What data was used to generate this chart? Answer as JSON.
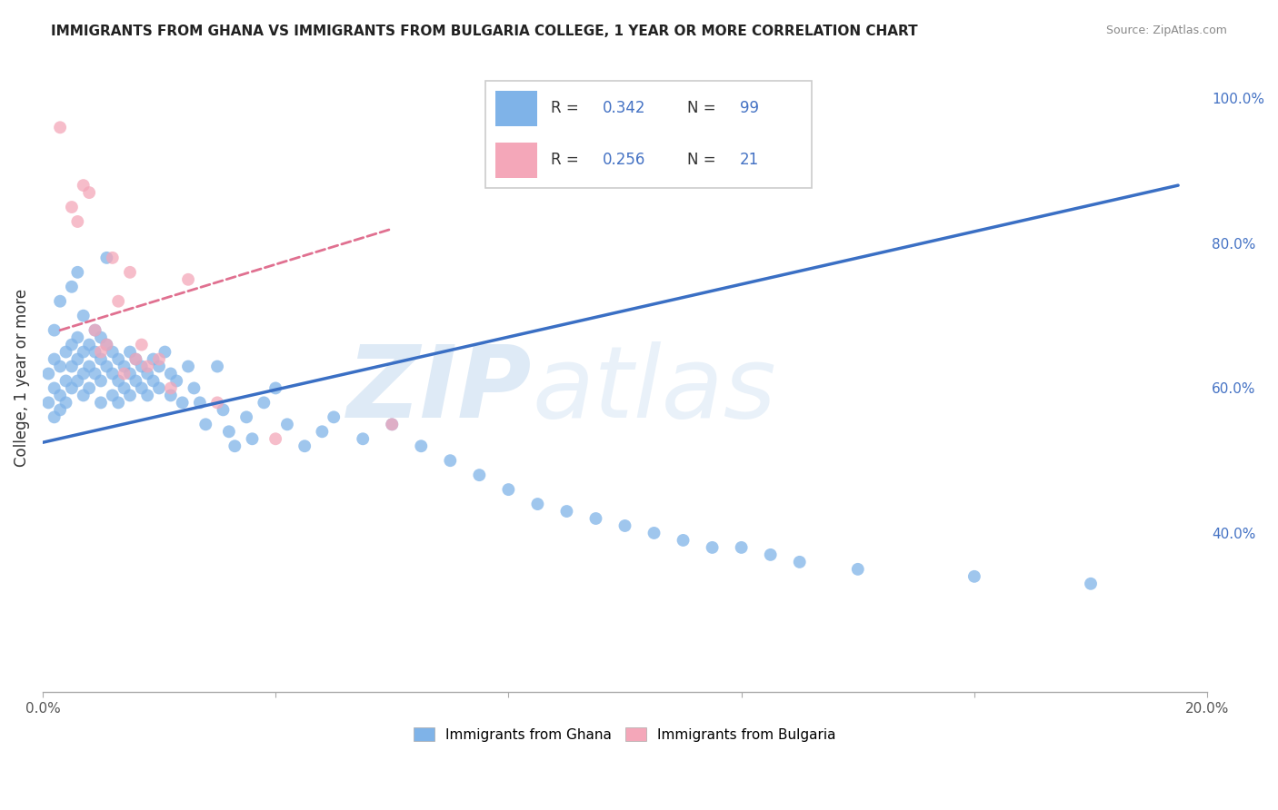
{
  "title": "IMMIGRANTS FROM GHANA VS IMMIGRANTS FROM BULGARIA COLLEGE, 1 YEAR OR MORE CORRELATION CHART",
  "source": "Source: ZipAtlas.com",
  "ylabel": "College, 1 year or more",
  "xlim": [
    0.0,
    0.2
  ],
  "ylim": [
    0.18,
    1.05
  ],
  "ghana_color": "#7FB3E8",
  "bulgaria_color": "#F4A7B9",
  "ghana_line_color": "#3A6FC4",
  "bulgaria_line_color": "#E07090",
  "ghana_R": 0.342,
  "ghana_N": 99,
  "bulgaria_R": 0.256,
  "bulgaria_N": 21,
  "ghana_scatter_x": [
    0.001,
    0.001,
    0.002,
    0.002,
    0.002,
    0.002,
    0.003,
    0.003,
    0.003,
    0.003,
    0.004,
    0.004,
    0.004,
    0.005,
    0.005,
    0.005,
    0.005,
    0.006,
    0.006,
    0.006,
    0.006,
    0.007,
    0.007,
    0.007,
    0.007,
    0.008,
    0.008,
    0.008,
    0.009,
    0.009,
    0.009,
    0.01,
    0.01,
    0.01,
    0.01,
    0.011,
    0.011,
    0.011,
    0.012,
    0.012,
    0.012,
    0.013,
    0.013,
    0.013,
    0.014,
    0.014,
    0.015,
    0.015,
    0.015,
    0.016,
    0.016,
    0.017,
    0.017,
    0.018,
    0.018,
    0.019,
    0.019,
    0.02,
    0.02,
    0.021,
    0.022,
    0.022,
    0.023,
    0.024,
    0.025,
    0.026,
    0.027,
    0.028,
    0.03,
    0.031,
    0.032,
    0.033,
    0.035,
    0.036,
    0.038,
    0.04,
    0.042,
    0.045,
    0.048,
    0.05,
    0.055,
    0.06,
    0.065,
    0.07,
    0.075,
    0.08,
    0.085,
    0.09,
    0.095,
    0.1,
    0.105,
    0.11,
    0.115,
    0.12,
    0.125,
    0.13,
    0.14,
    0.16,
    0.18
  ],
  "ghana_scatter_y": [
    0.62,
    0.58,
    0.64,
    0.6,
    0.56,
    0.68,
    0.63,
    0.59,
    0.57,
    0.72,
    0.65,
    0.61,
    0.58,
    0.66,
    0.63,
    0.6,
    0.74,
    0.67,
    0.64,
    0.61,
    0.76,
    0.65,
    0.62,
    0.59,
    0.7,
    0.66,
    0.63,
    0.6,
    0.68,
    0.65,
    0.62,
    0.67,
    0.64,
    0.61,
    0.58,
    0.66,
    0.63,
    0.78,
    0.65,
    0.62,
    0.59,
    0.64,
    0.61,
    0.58,
    0.63,
    0.6,
    0.65,
    0.62,
    0.59,
    0.64,
    0.61,
    0.63,
    0.6,
    0.62,
    0.59,
    0.64,
    0.61,
    0.63,
    0.6,
    0.65,
    0.62,
    0.59,
    0.61,
    0.58,
    0.63,
    0.6,
    0.58,
    0.55,
    0.63,
    0.57,
    0.54,
    0.52,
    0.56,
    0.53,
    0.58,
    0.6,
    0.55,
    0.52,
    0.54,
    0.56,
    0.53,
    0.55,
    0.52,
    0.5,
    0.48,
    0.46,
    0.44,
    0.43,
    0.42,
    0.41,
    0.4,
    0.39,
    0.38,
    0.38,
    0.37,
    0.36,
    0.35,
    0.34,
    0.33
  ],
  "bulgaria_scatter_x": [
    0.003,
    0.005,
    0.006,
    0.007,
    0.008,
    0.009,
    0.01,
    0.011,
    0.012,
    0.013,
    0.014,
    0.015,
    0.016,
    0.017,
    0.018,
    0.02,
    0.022,
    0.025,
    0.03,
    0.04,
    0.06
  ],
  "bulgaria_scatter_y": [
    0.96,
    0.85,
    0.83,
    0.88,
    0.87,
    0.68,
    0.65,
    0.66,
    0.78,
    0.72,
    0.62,
    0.76,
    0.64,
    0.66,
    0.63,
    0.64,
    0.6,
    0.75,
    0.58,
    0.53,
    0.55
  ],
  "ghana_line_x": [
    0.0,
    0.195
  ],
  "ghana_line_y": [
    0.525,
    0.88
  ],
  "bulgaria_line_x": [
    0.003,
    0.06
  ],
  "bulgaria_line_y": [
    0.68,
    0.82
  ]
}
